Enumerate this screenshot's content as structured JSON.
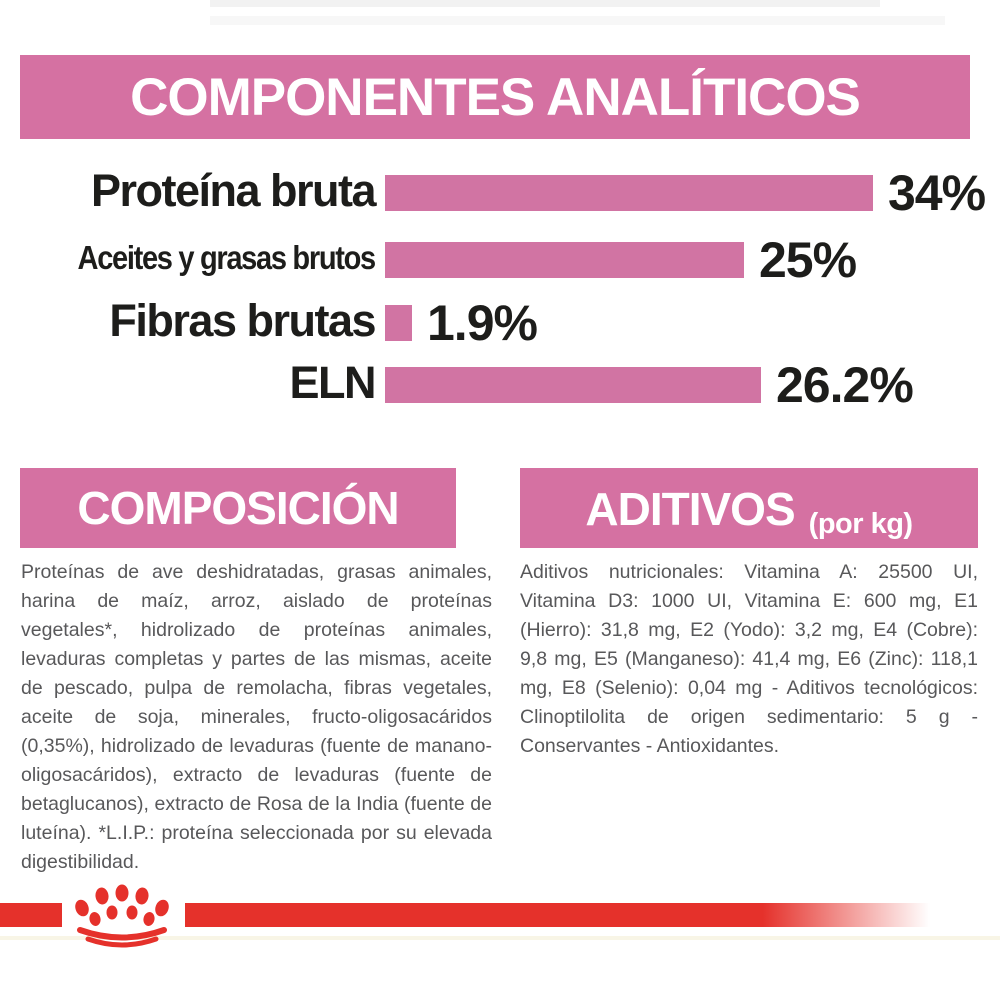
{
  "header": {
    "title": "COMPONENTES ANALÍTICOS"
  },
  "chart_data": {
    "type": "bar",
    "orientation": "horizontal",
    "title": "COMPONENTES ANALÍTICOS",
    "categories": [
      "Proteína bruta",
      "Aceites y grasas brutos",
      "Fibras brutas",
      "ELN"
    ],
    "values": [
      34,
      25,
      1.9,
      26.2
    ],
    "value_labels": [
      "34%",
      "25%",
      "1.9%",
      "26.2%"
    ],
    "unit": "%",
    "xlim": [
      0,
      34
    ],
    "grid": false,
    "legend": false,
    "bar_color": "#d174a3"
  },
  "composicion": {
    "title": "COMPOSICIÓN",
    "body": "Proteínas de ave deshidratadas, grasas animales, harina de maíz, arroz, aislado de proteínas vegetales*, hidrolizado de proteínas animales, levaduras completas y partes de las mismas, aceite de pescado, pulpa de remolacha, fibras vegetales, aceite de soja, minerales, fructo-oligosacáridos (0,35%), hidrolizado de levaduras (fuente de manano-oligosacáridos), extracto de levaduras (fuente de betaglucanos), extracto de Rosa de la India (fuente de luteína). *L.I.P.: proteína seleccionada por su elevada digestibilidad."
  },
  "aditivos": {
    "title": "ADITIVOS",
    "unit_note": "(por kg)",
    "body": "Aditivos nutricionales: Vitamina A: 25500 UI, Vitamina D3: 1000 UI, Vitamina E: 600 mg, E1 (Hierro): 31,8 mg, E2 (Yodo): 3,2 mg, E4 (Cobre): 9,8 mg, E5 (Manganeso): 41,4 mg, E6 (Zinc): 118,1 mg, E8 (Selenio): 0,04 mg - Aditivos tecnológicos: Clinoptilolita de origen sedimentario: 5 g - Conservantes - Antioxidantes."
  },
  "footer": {
    "logo": "royal-canin-crown-icon"
  },
  "colors": {
    "pink_banner": "#d571a2",
    "bar_pink": "#d174a3",
    "label_black": "#1d1d1b",
    "body_gray": "#58585a",
    "brand_red": "#e5312b",
    "background": "#ffffff"
  }
}
